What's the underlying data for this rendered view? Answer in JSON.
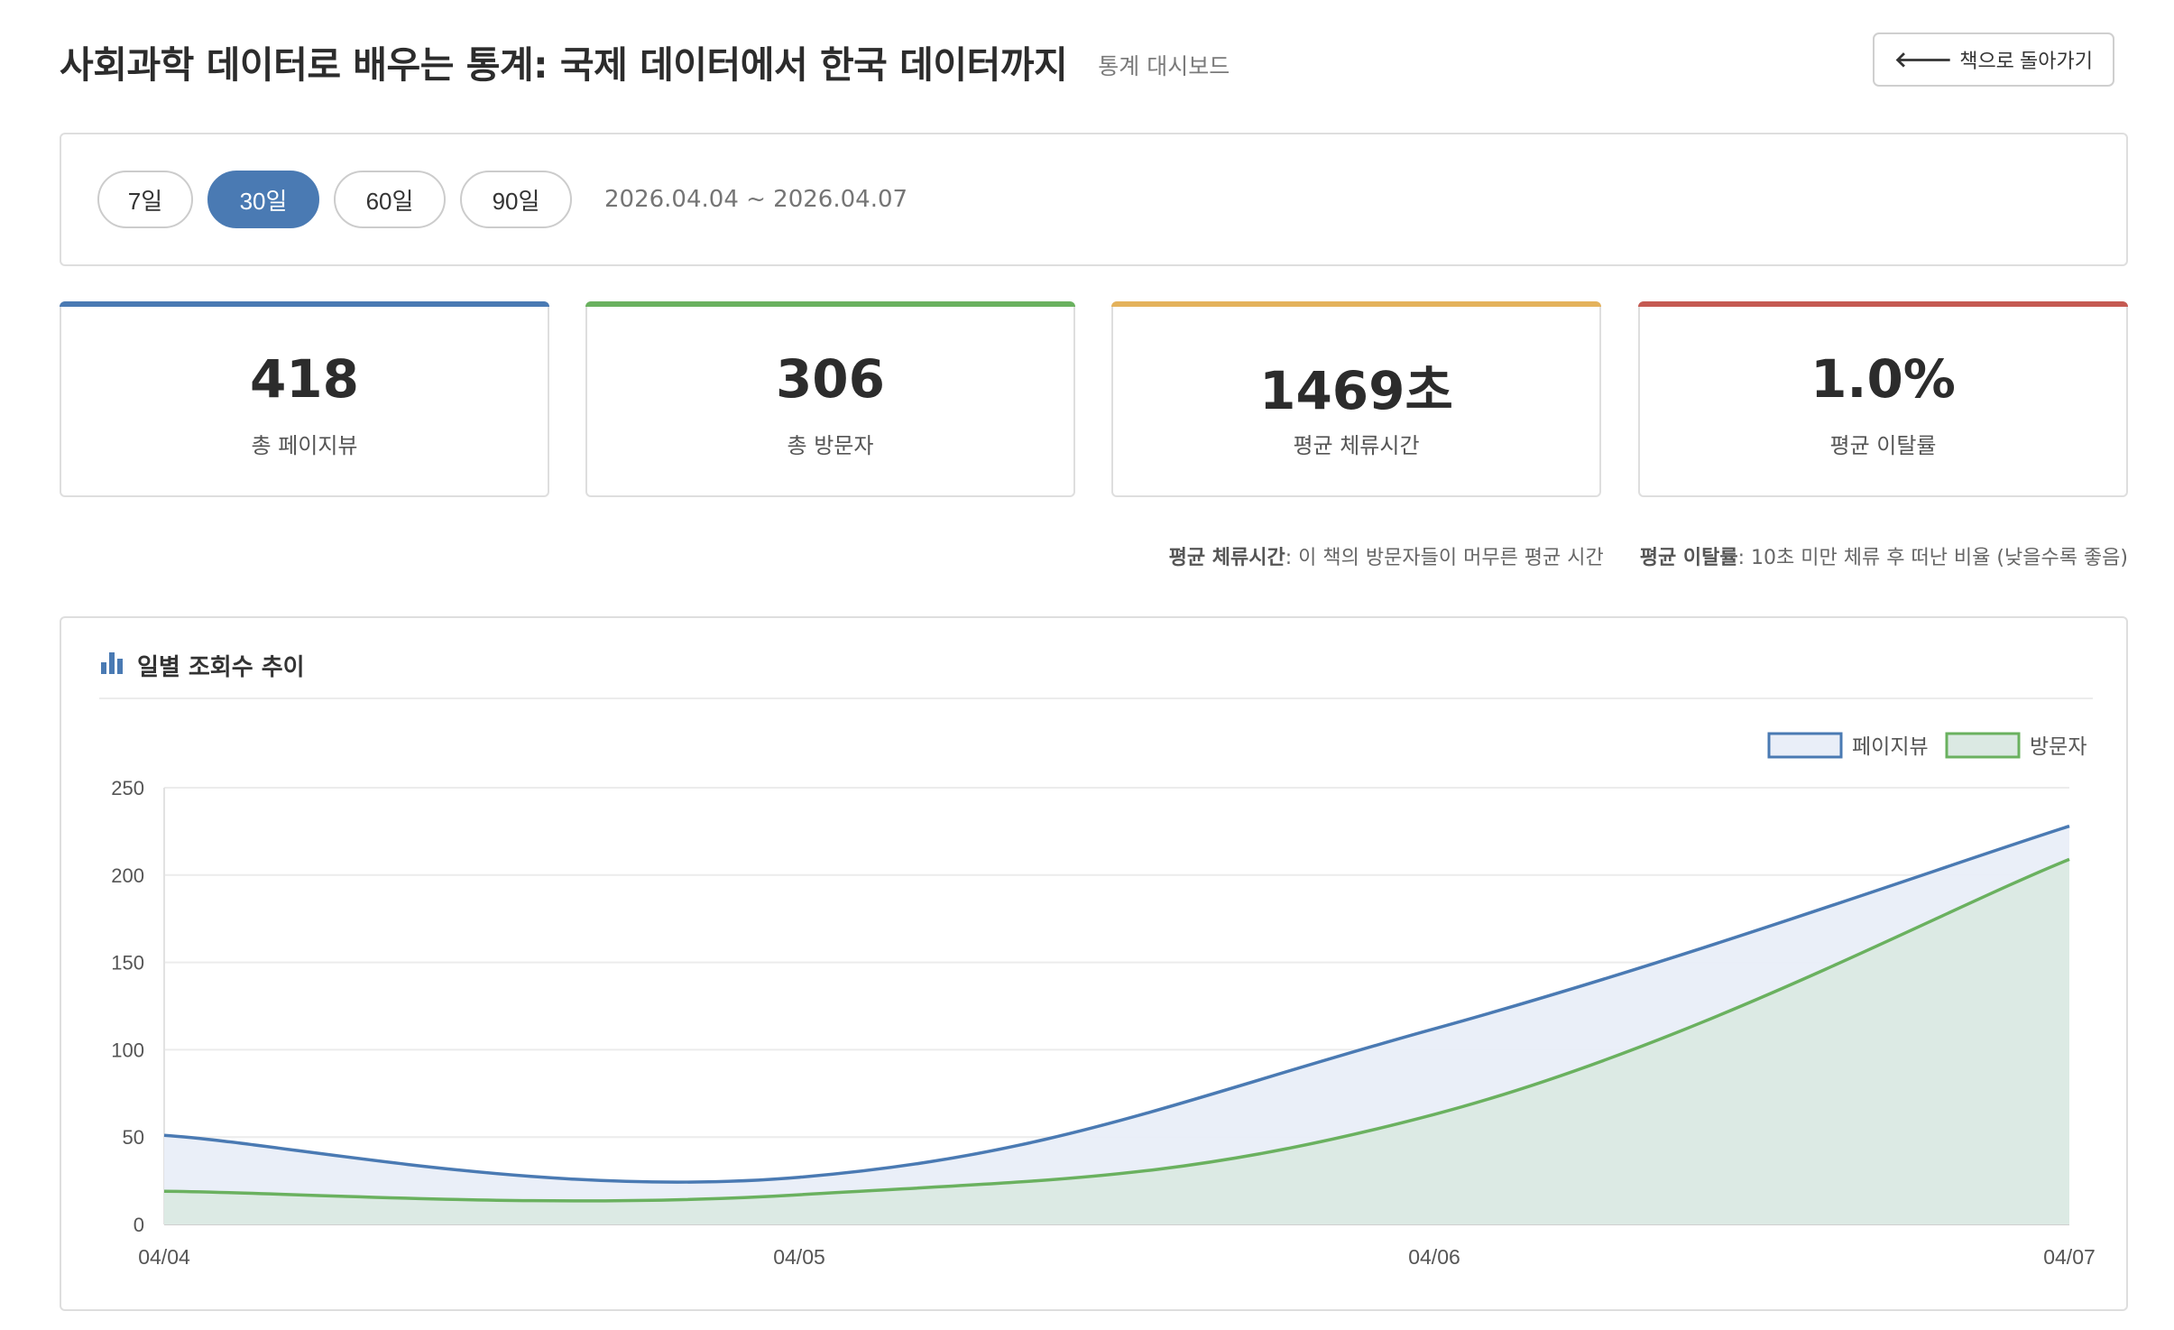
{
  "header": {
    "title": "사회과학 데이터로 배우는 통계: 국제 데이터에서 한국 데이터까지",
    "subtitle": "통계 대시보드",
    "back_label": "책으로 돌아가기"
  },
  "filters": {
    "periods": [
      {
        "label": "7일",
        "active": false
      },
      {
        "label": "30일",
        "active": true
      },
      {
        "label": "60일",
        "active": false
      },
      {
        "label": "90일",
        "active": false
      }
    ],
    "date_range": "2026.04.04 ~ 2026.04.07"
  },
  "stats": [
    {
      "value": "418",
      "label": "총 페이지뷰",
      "color": "#4a7ab3"
    },
    {
      "value": "306",
      "label": "총 방문자",
      "color": "#6ab15f"
    },
    {
      "value": "1469초",
      "label": "평균 체류시간",
      "color": "#e4b25c"
    },
    {
      "value": "1.0%",
      "label": "평균 이탈률",
      "color": "#c55a52"
    }
  ],
  "notes": [
    {
      "term": "평균 체류시간",
      "desc": ": 이 책의 방문자들이 머무른 평균 시간"
    },
    {
      "term": "평균 이탈률",
      "desc": ": 10초 미만 체류 후 떠난 비율 (낮을수록 좋음)"
    }
  ],
  "chart": {
    "title": "일별 조회수 추이",
    "icon": "bar-chart-icon"
  },
  "chart_data": {
    "type": "line",
    "categories": [
      "04/04",
      "04/05",
      "04/06",
      "04/07"
    ],
    "series": [
      {
        "name": "페이지뷰",
        "values": [
          51,
          27,
          112,
          228
        ],
        "color": "#4a7ab3",
        "fill": "#e9eef8"
      },
      {
        "name": "방문자",
        "values": [
          19,
          17,
          63,
          209
        ],
        "color": "#6ab15f",
        "fill": "#dbe9e3"
      }
    ],
    "ylim": [
      0,
      250
    ],
    "yticks": [
      0,
      50,
      100,
      150,
      200,
      250
    ],
    "grid": true,
    "legend": "top-right",
    "area_fill": true
  }
}
